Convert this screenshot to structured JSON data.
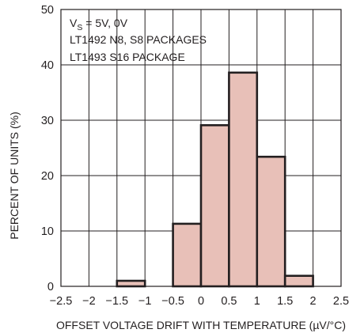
{
  "chart_data": {
    "type": "bar",
    "title": "",
    "xlabel": "OFFSET VOLTAGE DRIFT WITH TEMPERATURE (µV/°C)",
    "ylabel": "PERCENT OF UNITS (%)",
    "xlim": [
      -2.5,
      2.5
    ],
    "ylim": [
      0,
      50
    ],
    "x_ticks": [
      -2.5,
      -2,
      -1.5,
      -1,
      -0.5,
      0,
      0.5,
      1,
      1.5,
      2,
      2.5
    ],
    "x_tick_labels": [
      "−2.5",
      "−2",
      "−1.5",
      "−1",
      "−0.5",
      "0",
      "0.5",
      "1",
      "1.5",
      "2",
      "2.5"
    ],
    "y_ticks": [
      0,
      10,
      20,
      30,
      40,
      50
    ],
    "y_tick_labels": [
      "0",
      "10",
      "20",
      "30",
      "40",
      "50"
    ],
    "grid": true,
    "bin_width": 0.5,
    "bins": [
      {
        "start": -1.5,
        "end": -1.0,
        "value": 1
      },
      {
        "start": -0.5,
        "end": 0.0,
        "value": 11.3
      },
      {
        "start": 0.0,
        "end": 0.5,
        "value": 29.1
      },
      {
        "start": 0.5,
        "end": 1.0,
        "value": 38.6
      },
      {
        "start": 1.0,
        "end": 1.5,
        "value": 23.4
      },
      {
        "start": 1.5,
        "end": 2.0,
        "value": 1.9
      }
    ],
    "annotation": {
      "vs_prefix": "V",
      "vs_subscript": "S",
      "vs_value": " = 5V, 0V",
      "line2": "LT1492 N8, S8 PACKAGES",
      "line3": "LT1493 S16 PACKAGE"
    },
    "colors": {
      "bar_fill": "#e8c0b8",
      "bar_stroke": "#231f20",
      "grid": "#231f20",
      "text": "#231f20"
    }
  }
}
